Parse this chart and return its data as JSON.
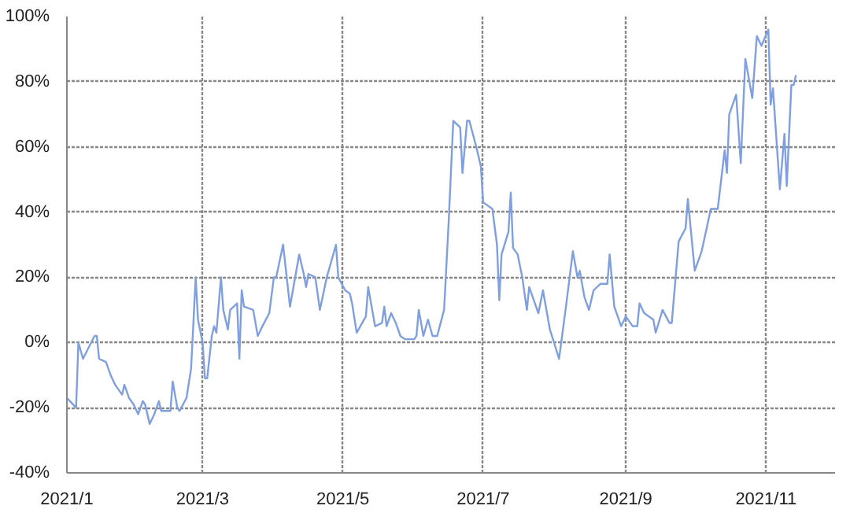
{
  "chart_data": {
    "type": "line",
    "x": [
      "2021-01-01",
      "2021-01-05",
      "2021-01-06",
      "2021-01-08",
      "2021-01-13",
      "2021-01-14",
      "2021-01-15",
      "2021-01-18",
      "2021-01-20",
      "2021-01-22",
      "2021-01-25",
      "2021-01-26",
      "2021-01-28",
      "2021-01-30",
      "2021-02-01",
      "2021-02-03",
      "2021-02-04",
      "2021-02-06",
      "2021-02-08",
      "2021-02-10",
      "2021-02-11",
      "2021-02-15",
      "2021-02-16",
      "2021-02-18",
      "2021-02-19",
      "2021-02-22",
      "2021-02-24",
      "2021-02-26",
      "2021-02-27",
      "2021-03-01",
      "2021-03-02",
      "2021-03-03",
      "2021-03-05",
      "2021-03-06",
      "2021-03-07",
      "2021-03-09",
      "2021-03-10",
      "2021-03-12",
      "2021-03-13",
      "2021-03-16",
      "2021-03-17",
      "2021-03-18",
      "2021-03-19",
      "2021-03-23",
      "2021-03-25",
      "2021-03-27",
      "2021-03-30",
      "2021-04-01",
      "2021-04-02",
      "2021-04-05",
      "2021-04-08",
      "2021-04-12",
      "2021-04-14",
      "2021-04-15",
      "2021-04-16",
      "2021-04-19",
      "2021-04-21",
      "2021-04-24",
      "2021-04-28",
      "2021-04-29",
      "2021-05-02",
      "2021-05-04",
      "2021-05-05",
      "2021-05-07",
      "2021-05-11",
      "2021-05-12",
      "2021-05-15",
      "2021-05-18",
      "2021-05-19",
      "2021-05-20",
      "2021-05-22",
      "2021-05-24",
      "2021-05-26",
      "2021-05-28",
      "2021-06-01",
      "2021-06-02",
      "2021-06-03",
      "2021-06-05",
      "2021-06-07",
      "2021-06-09",
      "2021-06-11",
      "2021-06-14",
      "2021-06-16",
      "2021-06-18",
      "2021-06-21",
      "2021-06-22",
      "2021-06-24",
      "2021-06-25",
      "2021-06-28",
      "2021-06-30",
      "2021-07-01",
      "2021-07-05",
      "2021-07-07",
      "2021-07-08",
      "2021-07-09",
      "2021-07-12",
      "2021-07-13",
      "2021-07-14",
      "2021-07-16",
      "2021-07-18",
      "2021-07-20",
      "2021-07-21",
      "2021-07-23",
      "2021-07-25",
      "2021-07-27",
      "2021-07-30",
      "2021-08-03",
      "2021-08-06",
      "2021-08-09",
      "2021-08-11",
      "2021-08-12",
      "2021-08-14",
      "2021-08-16",
      "2021-08-18",
      "2021-08-21",
      "2021-08-24",
      "2021-08-25",
      "2021-08-27",
      "2021-08-30",
      "2021-09-01",
      "2021-09-04",
      "2021-09-06",
      "2021-09-07",
      "2021-09-09",
      "2021-09-13",
      "2021-09-14",
      "2021-09-17",
      "2021-09-20",
      "2021-09-21",
      "2021-09-24",
      "2021-09-27",
      "2021-09-28",
      "2021-10-01",
      "2021-10-04",
      "2021-10-08",
      "2021-10-11",
      "2021-10-14",
      "2021-10-15",
      "2021-10-16",
      "2021-10-19",
      "2021-10-21",
      "2021-10-23",
      "2021-10-26",
      "2021-10-28",
      "2021-10-30",
      "2021-11-02",
      "2021-11-03",
      "2021-11-04",
      "2021-11-07",
      "2021-11-09",
      "2021-11-10",
      "2021-11-12",
      "2021-11-13",
      "2021-11-14"
    ],
    "series": [
      {
        "color": "#7f9fe0",
        "values": [
          -17,
          -20,
          0,
          -5,
          2,
          2,
          -5,
          -6,
          -10,
          -13,
          -16,
          -13,
          -17,
          -19,
          -22,
          -18,
          -19,
          -25,
          -22,
          -18,
          -21,
          -21,
          -12,
          -20,
          -21,
          -17,
          -8,
          20,
          7,
          0,
          -11,
          -11,
          2,
          5,
          3,
          20,
          10,
          4,
          10,
          12,
          -5,
          16,
          11,
          10,
          2,
          5,
          9,
          20,
          20,
          30,
          11,
          27,
          21,
          17,
          21,
          20,
          10,
          20,
          30,
          20,
          16,
          15,
          12,
          3,
          8,
          17,
          5,
          6,
          11,
          5,
          9,
          6,
          2,
          1,
          1,
          2,
          10,
          2,
          7,
          2,
          2,
          10,
          37,
          68,
          66,
          52,
          68,
          68,
          60,
          54,
          43,
          41,
          30,
          13,
          27,
          34,
          46,
          29,
          27,
          20,
          10,
          17,
          13,
          9,
          16,
          4,
          -5,
          11,
          28,
          20,
          22,
          14,
          10,
          16,
          18,
          18,
          27,
          11,
          5,
          8,
          5,
          5,
          12,
          9,
          7,
          3,
          10,
          6,
          6,
          31,
          35,
          44,
          22,
          28,
          41,
          41,
          59,
          52,
          70,
          76,
          55,
          87,
          75,
          94,
          91,
          96,
          73,
          78,
          47,
          64,
          48,
          79,
          79,
          82
        ]
      }
    ],
    "xlim": [
      "2021-01-01",
      "2021-12-01"
    ],
    "xticks": [
      {
        "value": "2021-01-01",
        "label": "2021/1"
      },
      {
        "value": "2021-03-01",
        "label": "2021/3"
      },
      {
        "value": "2021-05-01",
        "label": "2021/5"
      },
      {
        "value": "2021-07-01",
        "label": "2021/7"
      },
      {
        "value": "2021-09-01",
        "label": "2021/9"
      },
      {
        "value": "2021-11-01",
        "label": "2021/11"
      }
    ],
    "ylim": [
      -40,
      100
    ],
    "yticks": [
      {
        "value": -40,
        "label": "-40%"
      },
      {
        "value": -20,
        "label": "-20%"
      },
      {
        "value": 0,
        "label": "0%"
      },
      {
        "value": 20,
        "label": "20%"
      },
      {
        "value": 40,
        "label": "40%"
      },
      {
        "value": 60,
        "label": "60%"
      },
      {
        "value": 80,
        "label": "80%"
      },
      {
        "value": 100,
        "label": "100%"
      }
    ],
    "grid": true,
    "line_style": "solid",
    "marker": "none"
  }
}
